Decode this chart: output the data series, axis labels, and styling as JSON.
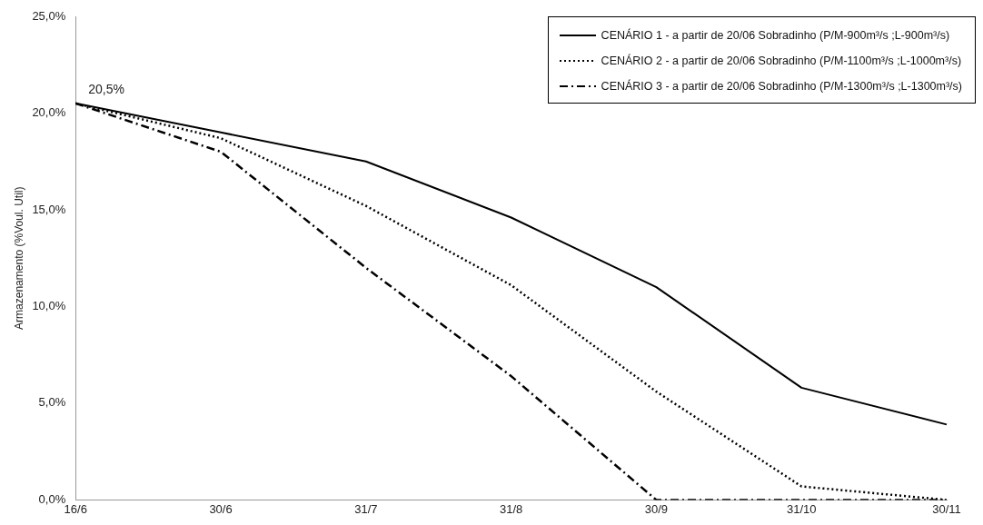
{
  "chart_data": {
    "type": "line",
    "ylabel": "Armazenamento (%Voul. Util)",
    "categories": [
      "16/6",
      "30/6",
      "31/7",
      "31/8",
      "30/9",
      "31/10",
      "30/11"
    ],
    "series": [
      {
        "name": "CENÁRIO 1 - a partir de 20/06 Sobradinho (P/M-900m³/s ;L-900m³/s)",
        "color": "#000000",
        "line_style": "solid",
        "values": [
          20.5,
          19.0,
          17.5,
          14.6,
          11.0,
          5.8,
          3.9
        ]
      },
      {
        "name": "CENÁRIO 2 - a partir de 20/06 Sobradinho (P/M-1100m³/s ;L-1000m³/s)",
        "color": "#000000",
        "line_style": "dotted",
        "values": [
          20.5,
          18.7,
          15.2,
          11.1,
          5.6,
          0.7,
          0
        ]
      },
      {
        "name": "CENÁRIO 3 - a partir de 20/06 Sobradinho (P/M-1300m³/s ;L-1300m³/s)",
        "color": "#000000",
        "line_style": "dashdot",
        "values": [
          20.5,
          18.0,
          12.0,
          6.4,
          0,
          0,
          0
        ]
      }
    ],
    "ylim": [
      0,
      25
    ],
    "yticks": [
      {
        "value": 0,
        "label": "0,0%"
      },
      {
        "value": 5,
        "label": "5,0%"
      },
      {
        "value": 10,
        "label": "10,0%"
      },
      {
        "value": 15,
        "label": "15,0%"
      },
      {
        "value": 20,
        "label": "20,0%"
      },
      {
        "value": 25,
        "label": "25,0%"
      }
    ],
    "annotations": [
      {
        "text": "20,5%",
        "x": "16/6",
        "y": 20.5
      }
    ],
    "legend": "top right",
    "grid": false,
    "marker": "none"
  }
}
